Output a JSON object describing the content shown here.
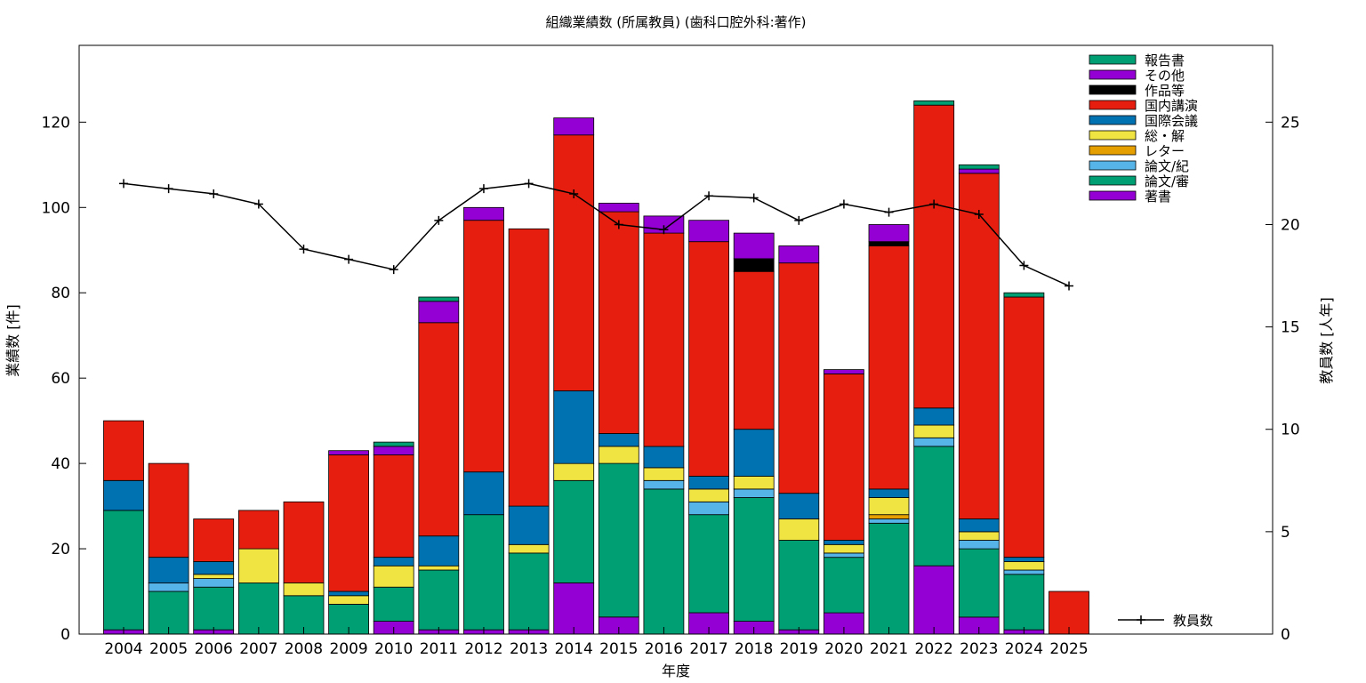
{
  "chart_data": {
    "type": "bar",
    "stacked": true,
    "title": "組織業績数 (所属教員) (歯科口腔外科:著作)",
    "xlabel": "年度",
    "ylabel": "業績数 [件]",
    "y2label": "教員数 [人年]",
    "ylim": [
      0,
      138
    ],
    "y2lim": [
      0,
      28.75
    ],
    "yticks": [
      0,
      20,
      40,
      60,
      80,
      100,
      120
    ],
    "y2ticks": [
      0,
      5,
      10,
      15,
      20,
      25
    ],
    "grid": false,
    "legend_position": "top-right",
    "categories": [
      "2004",
      "2005",
      "2006",
      "2007",
      "2008",
      "2009",
      "2010",
      "2011",
      "2012",
      "2013",
      "2014",
      "2015",
      "2016",
      "2017",
      "2018",
      "2019",
      "2020",
      "2021",
      "2022",
      "2023",
      "2024",
      "2025"
    ],
    "series": [
      {
        "name": "著書",
        "color": "#9400d3",
        "values": [
          1,
          0,
          1,
          0,
          0,
          0,
          3,
          1,
          1,
          1,
          12,
          4,
          0,
          5,
          3,
          1,
          5,
          0,
          16,
          4,
          1,
          0
        ]
      },
      {
        "name": "論文/審",
        "color": "#009e73",
        "values": [
          28,
          10,
          10,
          12,
          9,
          7,
          8,
          14,
          27,
          18,
          24,
          36,
          34,
          23,
          29,
          21,
          13,
          26,
          28,
          16,
          13,
          0
        ]
      },
      {
        "name": "論文/紀",
        "color": "#56b4e9",
        "values": [
          0,
          2,
          2,
          0,
          0,
          0,
          0,
          0,
          0,
          0,
          0,
          0,
          2,
          3,
          2,
          0,
          1,
          1,
          2,
          2,
          1,
          0
        ]
      },
      {
        "name": "レター",
        "color": "#e69f00",
        "values": [
          0,
          0,
          0,
          0,
          0,
          0,
          0,
          0,
          0,
          0,
          0,
          0,
          0,
          0,
          0,
          0,
          0,
          1,
          0,
          0,
          0,
          0
        ]
      },
      {
        "name": "総・解",
        "color": "#f0e442",
        "values": [
          0,
          0,
          1,
          8,
          3,
          2,
          5,
          1,
          0,
          2,
          4,
          4,
          3,
          3,
          3,
          5,
          2,
          4,
          3,
          2,
          2,
          0
        ]
      },
      {
        "name": "国際会議",
        "color": "#0072b2",
        "values": [
          7,
          6,
          3,
          0,
          0,
          1,
          2,
          7,
          10,
          9,
          17,
          3,
          5,
          3,
          11,
          6,
          1,
          2,
          4,
          3,
          1,
          0
        ]
      },
      {
        "name": "国内講演",
        "color": "#e51e10",
        "values": [
          14,
          22,
          10,
          9,
          19,
          32,
          24,
          50,
          59,
          65,
          60,
          52,
          50,
          55,
          37,
          54,
          39,
          57,
          71,
          81,
          61,
          10
        ]
      },
      {
        "name": "作品等",
        "color": "#000000",
        "values": [
          0,
          0,
          0,
          0,
          0,
          0,
          0,
          0,
          0,
          0,
          0,
          0,
          0,
          0,
          3,
          0,
          0,
          1,
          0,
          0,
          0,
          0
        ]
      },
      {
        "name": "その他",
        "color": "#9400d3",
        "values": [
          0,
          0,
          0,
          0,
          0,
          1,
          2,
          5,
          3,
          0,
          4,
          2,
          4,
          5,
          6,
          4,
          1,
          4,
          0,
          1,
          0,
          0
        ]
      },
      {
        "name": "報告書",
        "color": "#009e73",
        "values": [
          0,
          0,
          0,
          0,
          0,
          0,
          1,
          1,
          0,
          0,
          0,
          0,
          0,
          0,
          0,
          0,
          0,
          0,
          1,
          1,
          1,
          0
        ]
      }
    ],
    "line": {
      "name": "教員数",
      "color": "#000000",
      "axis": "y2",
      "values": [
        22.0,
        21.75,
        21.5,
        21.0,
        18.8,
        18.3,
        17.8,
        20.2,
        21.75,
        22.0,
        21.5,
        20.0,
        19.75,
        21.4,
        21.3,
        20.2,
        21.0,
        20.6,
        21.0,
        20.5,
        18.0,
        17.0
      ]
    }
  }
}
